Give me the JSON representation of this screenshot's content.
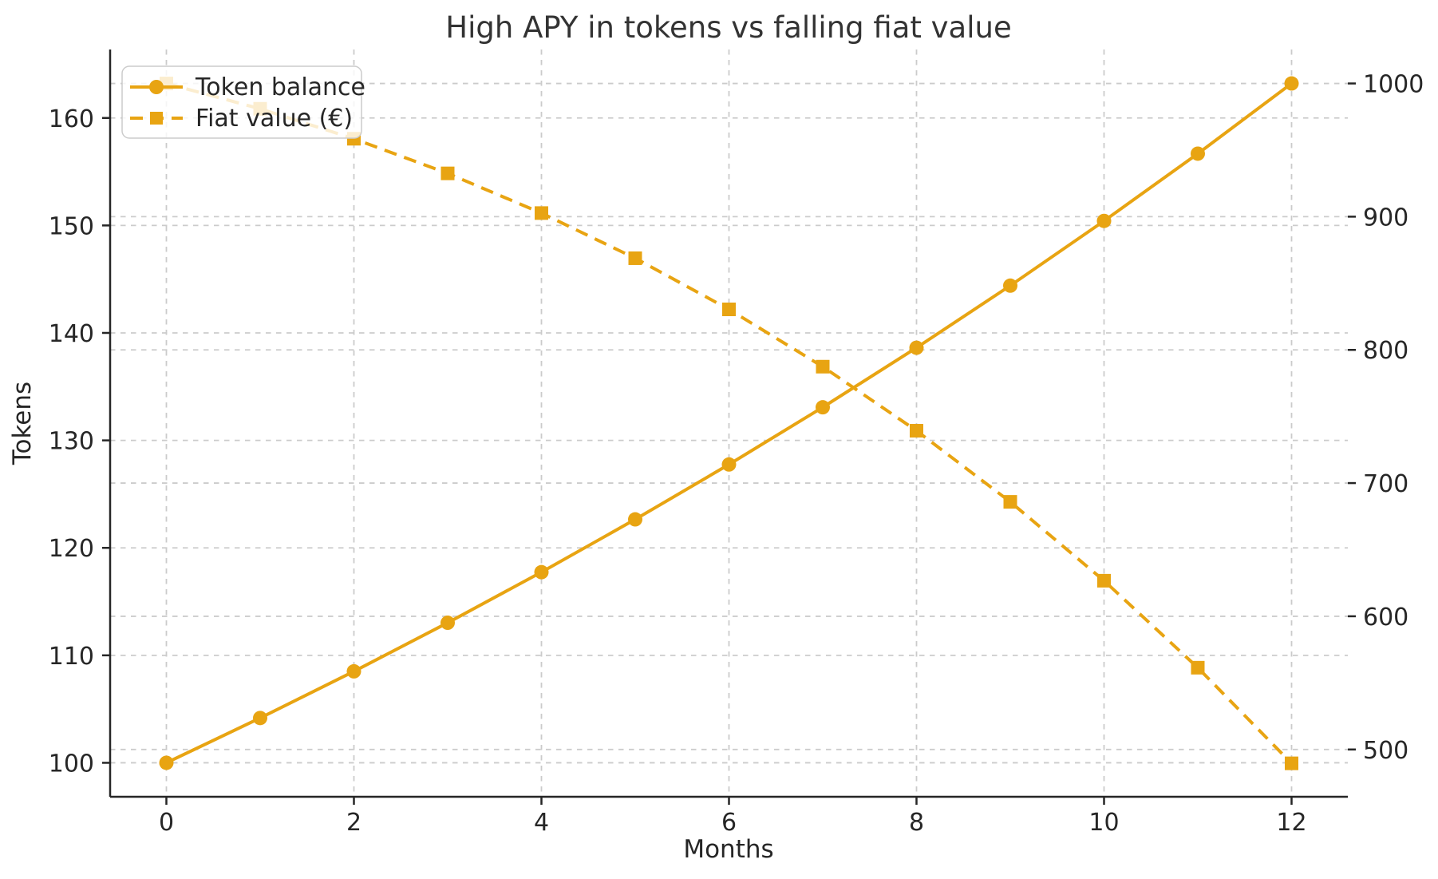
{
  "chart_data": {
    "type": "line",
    "title": "High APY in tokens vs falling fiat value",
    "xlabel": "Months",
    "ylabel_left": "Tokens",
    "x": [
      0,
      1,
      2,
      3,
      4,
      5,
      6,
      7,
      8,
      9,
      10,
      11,
      12
    ],
    "series": [
      {
        "name": "Token balance",
        "axis": "left",
        "line_style": "solid",
        "marker": "circle",
        "values": [
          100.0,
          104.17,
          108.51,
          113.03,
          117.74,
          122.65,
          127.76,
          133.08,
          138.62,
          144.4,
          150.42,
          156.68,
          163.21
        ]
      },
      {
        "name": "Fiat value (€)",
        "axis": "right",
        "line_style": "dashed",
        "marker": "square",
        "values": [
          1000.0,
          981.0,
          958.5,
          932.5,
          902.7,
          868.8,
          830.4,
          787.4,
          739.3,
          685.9,
          626.7,
          561.4,
          489.6
        ]
      }
    ],
    "x_ticks": [
      0,
      2,
      4,
      6,
      8,
      10,
      12
    ],
    "left_ticks": [
      100,
      110,
      120,
      130,
      140,
      150,
      160
    ],
    "right_ticks": [
      500,
      600,
      700,
      800,
      900,
      1000
    ],
    "xlim": [
      -0.6,
      12.6
    ],
    "ylim_left": [
      96.84,
      166.37
    ],
    "ylim_right": [
      464.5,
      1025.5
    ],
    "grid": true,
    "grid_style": "dashed",
    "legend_position": "upper left",
    "legend": {
      "token_label": "Token balance",
      "fiat_label": "Fiat value (€)"
    },
    "colors": {
      "series": "#E8A412",
      "grid": "#CBCBCB",
      "spine": "#262626",
      "text": "#262626",
      "title": "#333333",
      "legend_border": "#CCCCCC"
    }
  }
}
